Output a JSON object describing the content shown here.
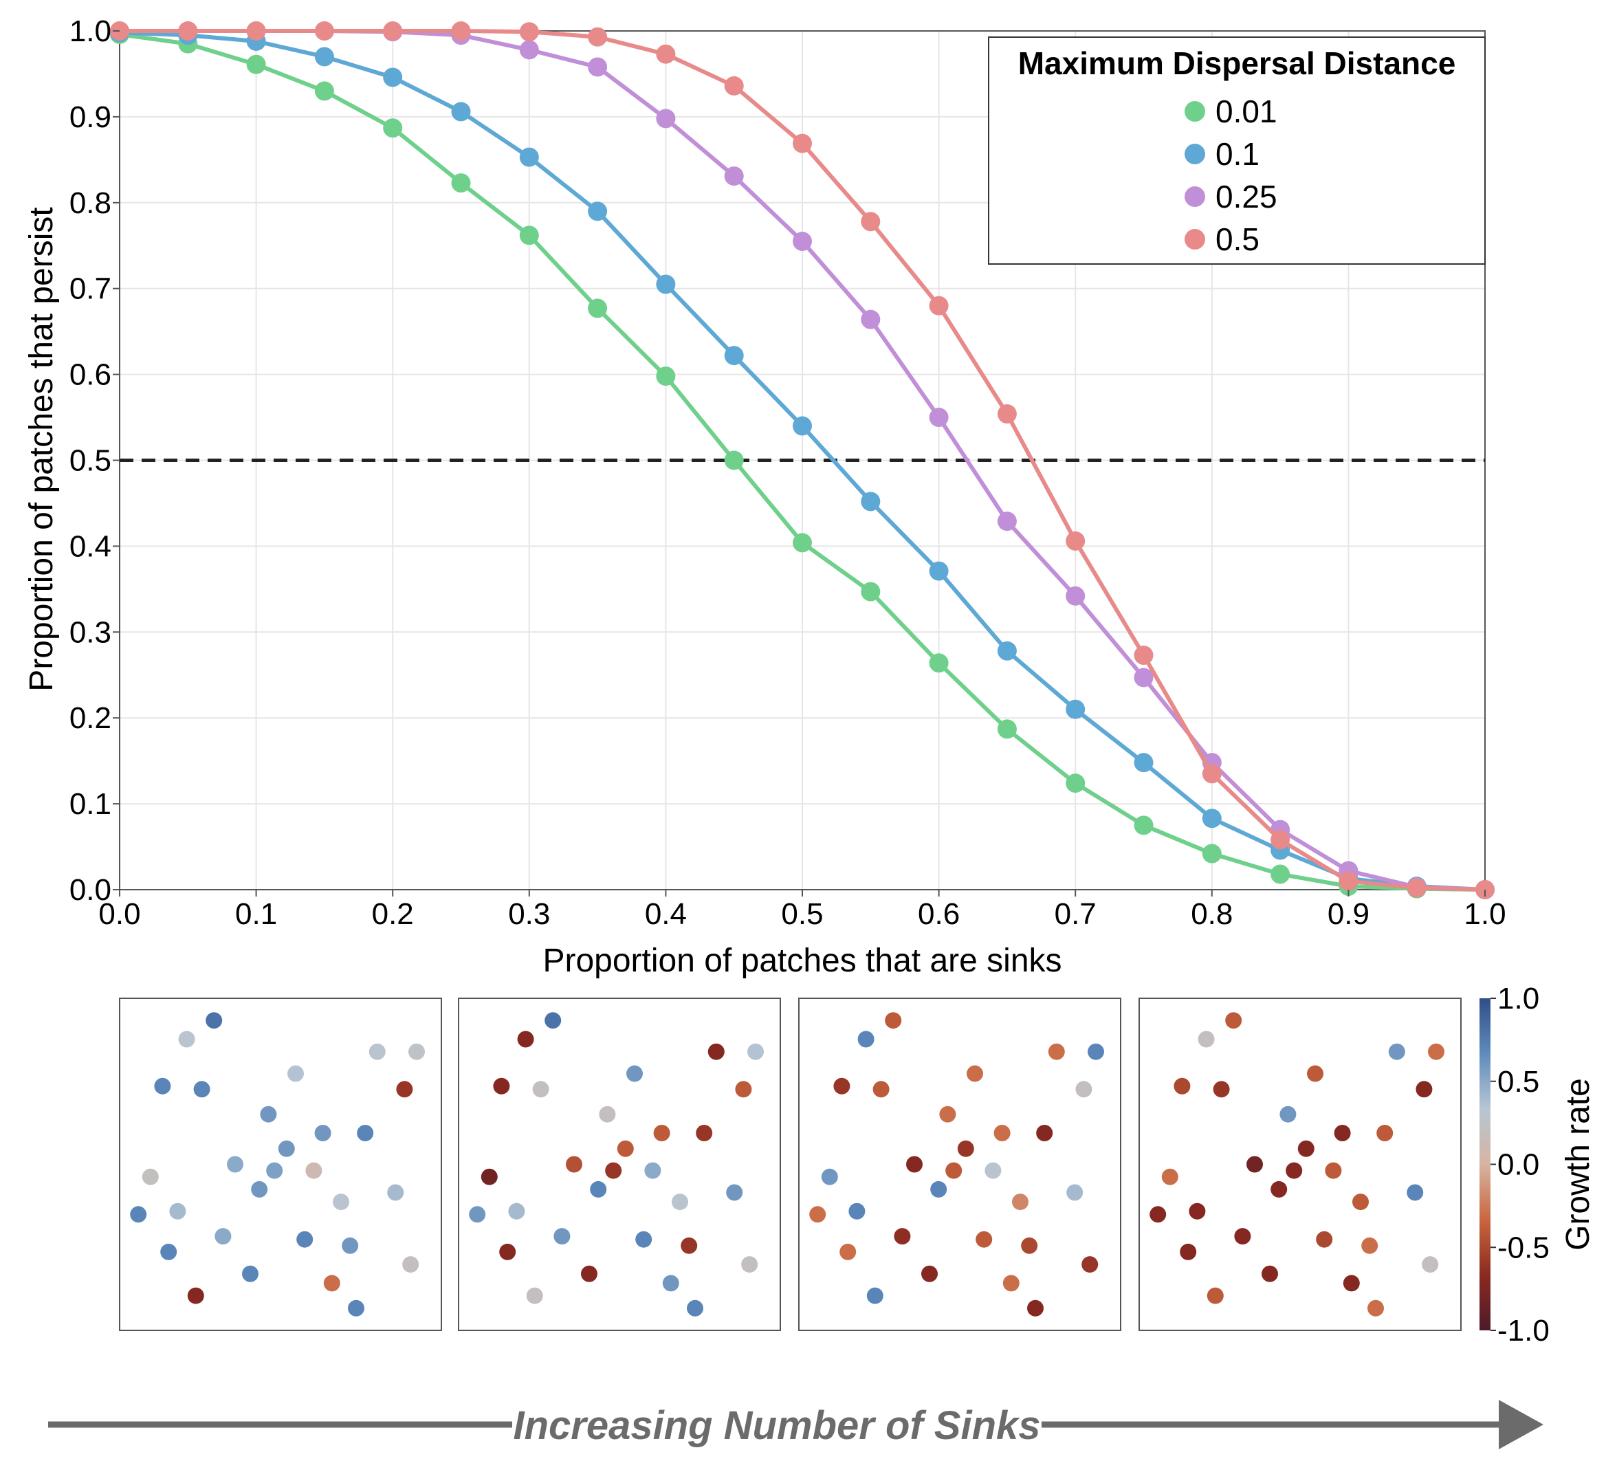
{
  "chart_data": [
    {
      "type": "line",
      "xlabel": "Proportion of patches that are sinks",
      "ylabel": "Proportion of patches that persist",
      "xlim": [
        0,
        1
      ],
      "ylim": [
        0,
        1
      ],
      "x_ticks": [
        "0.0",
        "0.1",
        "0.2",
        "0.3",
        "0.4",
        "0.5",
        "0.6",
        "0.7",
        "0.8",
        "0.9",
        "1.0"
      ],
      "y_ticks": [
        "0.0",
        "0.1",
        "0.2",
        "0.3",
        "0.4",
        "0.5",
        "0.6",
        "0.7",
        "0.8",
        "0.9",
        "1.0"
      ],
      "grid": true,
      "reference_line": {
        "y": 0.5,
        "style": "dashed",
        "color": "#222222"
      },
      "legend": {
        "title": "Maximum Dispersal Distance",
        "position": "top-right"
      },
      "x": [
        0,
        0.05,
        0.1,
        0.15,
        0.2,
        0.25,
        0.3,
        0.35,
        0.4,
        0.45,
        0.5,
        0.55,
        0.6,
        0.65,
        0.7,
        0.75,
        0.8,
        0.85,
        0.9,
        0.95,
        1.0
      ],
      "series": [
        {
          "name": "0.01",
          "color": "#6fd08c",
          "values": [
            0.996,
            0.985,
            0.961,
            0.93,
            0.887,
            0.823,
            0.762,
            0.677,
            0.598,
            0.5,
            0.404,
            0.347,
            0.264,
            0.187,
            0.124,
            0.075,
            0.042,
            0.018,
            0.004,
            0.001,
            0.0
          ]
        },
        {
          "name": "0.1",
          "color": "#5ea8d6",
          "values": [
            0.998,
            0.995,
            0.988,
            0.97,
            0.946,
            0.906,
            0.853,
            0.79,
            0.705,
            0.622,
            0.54,
            0.452,
            0.371,
            0.278,
            0.21,
            0.148,
            0.083,
            0.046,
            0.013,
            0.004,
            0.0
          ]
        },
        {
          "name": "0.25",
          "color": "#c08fd8",
          "values": [
            1.0,
            1.0,
            1.0,
            1.0,
            0.999,
            0.995,
            0.978,
            0.958,
            0.898,
            0.831,
            0.755,
            0.664,
            0.55,
            0.429,
            0.342,
            0.247,
            0.148,
            0.07,
            0.022,
            0.003,
            0.0
          ]
        },
        {
          "name": "0.5",
          "color": "#e88a8a",
          "values": [
            1.0,
            1.0,
            1.0,
            1.0,
            1.0,
            1.0,
            0.999,
            0.993,
            0.973,
            0.936,
            0.869,
            0.778,
            0.68,
            0.554,
            0.406,
            0.273,
            0.135,
            0.058,
            0.01,
            0.002,
            0.0
          ]
        }
      ]
    },
    {
      "type": "scatter",
      "panels": 4,
      "colorbar": {
        "label": "Growth rate",
        "range": [
          -1.0,
          1.0
        ],
        "ticks": [
          "1.0",
          "0.5",
          "0.0",
          "-0.5",
          "-1.0"
        ],
        "stops": [
          "#2f4f86",
          "#5f8bbd",
          "#b7c6d3",
          "#d7b4a2",
          "#c9663f",
          "#8b2a20",
          "#4d1a2a"
        ]
      },
      "patch_positions": [
        [
          0.28,
          0.96
        ],
        [
          0.19,
          0.9
        ],
        [
          0.11,
          0.75
        ],
        [
          0.24,
          0.74
        ],
        [
          0.55,
          0.79
        ],
        [
          0.82,
          0.86
        ],
        [
          0.95,
          0.86
        ],
        [
          0.91,
          0.74
        ],
        [
          0.46,
          0.66
        ],
        [
          0.64,
          0.6
        ],
        [
          0.78,
          0.6
        ],
        [
          0.52,
          0.55
        ],
        [
          0.35,
          0.5
        ],
        [
          0.48,
          0.48
        ],
        [
          0.61,
          0.48
        ],
        [
          0.07,
          0.46
        ],
        [
          0.88,
          0.41
        ],
        [
          0.43,
          0.42
        ],
        [
          0.7,
          0.38
        ],
        [
          0.03,
          0.34
        ],
        [
          0.16,
          0.35
        ],
        [
          0.31,
          0.27
        ],
        [
          0.58,
          0.26
        ],
        [
          0.73,
          0.24
        ],
        [
          0.13,
          0.22
        ],
        [
          0.4,
          0.15
        ],
        [
          0.67,
          0.12
        ],
        [
          0.93,
          0.18
        ],
        [
          0.22,
          0.08
        ],
        [
          0.75,
          0.04
        ]
      ],
      "panel_growth_rates": [
        [
          0.8,
          0.3,
          0.7,
          0.7,
          0.35,
          0.3,
          0.25,
          -0.6,
          0.6,
          0.6,
          0.7,
          0.6,
          0.5,
          0.55,
          0.1,
          0.2,
          0.4,
          0.6,
          0.3,
          0.7,
          0.4,
          0.5,
          0.7,
          0.6,
          0.7,
          0.7,
          -0.3,
          0.2,
          -0.7,
          0.7
        ],
        [
          0.8,
          -0.7,
          -0.7,
          0.2,
          0.6,
          -0.7,
          0.35,
          -0.4,
          0.2,
          -0.4,
          -0.6,
          -0.4,
          -0.45,
          -0.6,
          0.5,
          -0.8,
          0.6,
          0.7,
          0.3,
          0.6,
          0.4,
          0.6,
          0.7,
          -0.6,
          -0.7,
          -0.7,
          0.6,
          0.2,
          0.2,
          0.7
        ],
        [
          -0.4,
          0.7,
          -0.6,
          -0.4,
          -0.3,
          -0.3,
          0.7,
          0.2,
          -0.3,
          -0.3,
          -0.7,
          -0.6,
          -0.7,
          -0.4,
          0.3,
          0.6,
          0.4,
          0.7,
          -0.2,
          -0.3,
          0.7,
          -0.65,
          -0.4,
          -0.5,
          -0.3,
          -0.7,
          -0.3,
          -0.6,
          0.7,
          -0.7
        ],
        [
          -0.4,
          0.2,
          -0.5,
          -0.6,
          -0.4,
          0.6,
          -0.3,
          -0.7,
          0.6,
          -0.7,
          -0.4,
          -0.7,
          -0.8,
          -0.7,
          -0.4,
          -0.3,
          0.7,
          -0.7,
          -0.4,
          -0.7,
          -0.7,
          -0.7,
          -0.5,
          -0.3,
          -0.7,
          -0.7,
          -0.7,
          0.2,
          -0.4,
          -0.3
        ]
      ]
    }
  ],
  "footer": {
    "arrow_label": "Increasing Number of Sinks"
  }
}
